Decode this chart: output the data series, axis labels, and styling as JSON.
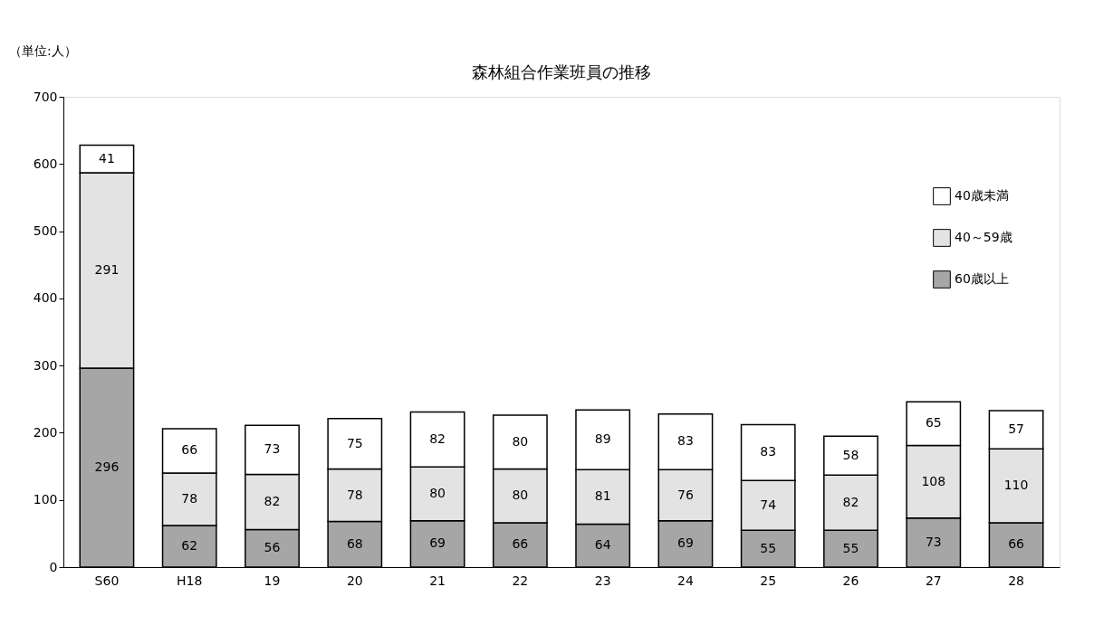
{
  "chart_data": {
    "type": "bar",
    "title": "森林組合作業班員の推移",
    "annotations": [
      "（単位:人）"
    ],
    "categories": [
      "S60",
      "H18",
      "19",
      "20",
      "21",
      "22",
      "23",
      "24",
      "25",
      "26",
      "27",
      "28"
    ],
    "stacked": true,
    "data_labels": true,
    "legend": "right",
    "grid": false,
    "ylim": [
      0,
      700
    ],
    "yticks": [
      0,
      100,
      200,
      300,
      400,
      500,
      600,
      700
    ],
    "series": [
      {
        "name": "60歳以上",
        "color": "#a6a6a6",
        "values": [
          296,
          62,
          56,
          68,
          69,
          66,
          64,
          69,
          55,
          55,
          73,
          66
        ]
      },
      {
        "name": "40～59歳",
        "color": "#e3e3e3",
        "values": [
          291,
          78,
          82,
          78,
          80,
          80,
          81,
          76,
          74,
          82,
          108,
          110
        ]
      },
      {
        "name": "40歳未満",
        "color": "#ffffff",
        "values": [
          41,
          66,
          73,
          75,
          82,
          80,
          89,
          83,
          83,
          58,
          65,
          57
        ]
      }
    ]
  }
}
